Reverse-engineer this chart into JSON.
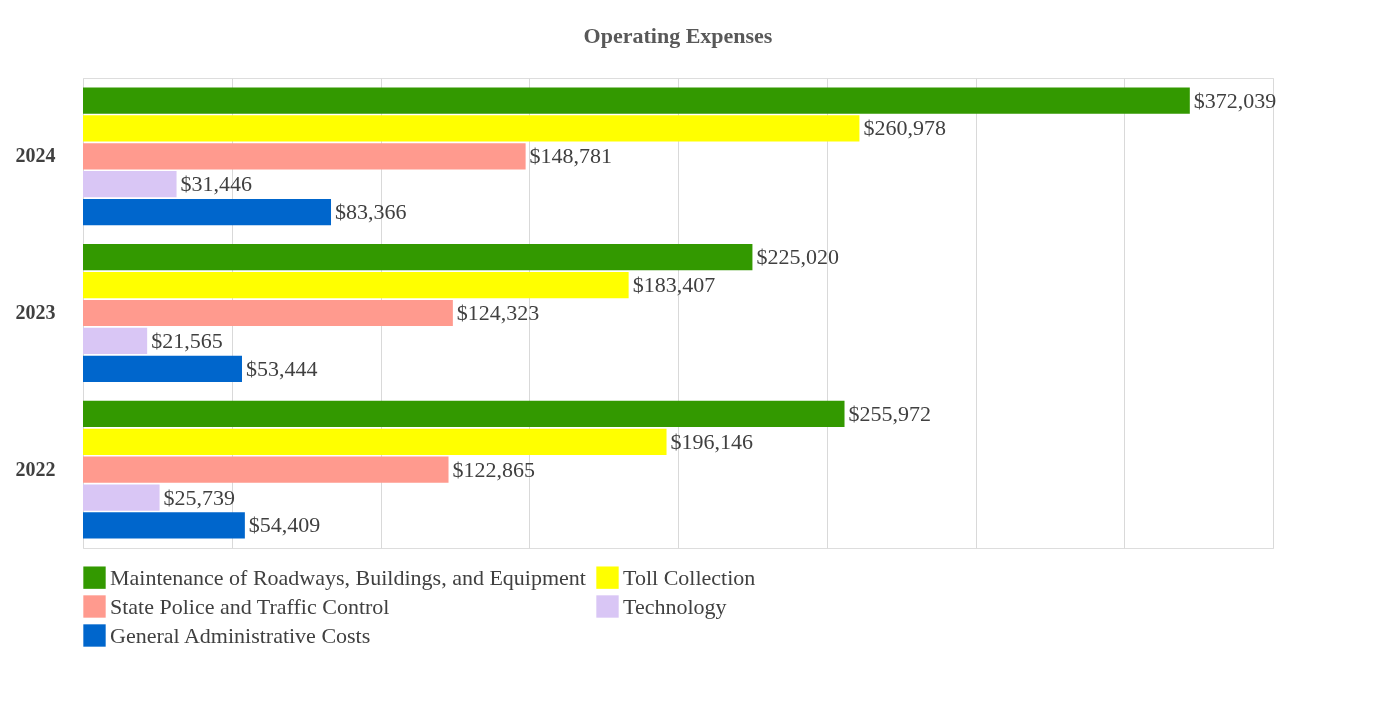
{
  "chart_data": {
    "type": "bar",
    "orientation": "horizontal",
    "title": "Operating Expenses",
    "categories": [
      "2024",
      "2023",
      "2022"
    ],
    "xlim": [
      0,
      400000
    ],
    "xticks": [
      {
        "value": 0,
        "label": null
      },
      {
        "value": 50000,
        "label": null
      },
      {
        "value": 100000,
        "label": null
      },
      {
        "value": 150000,
        "label": null
      },
      {
        "value": 200000,
        "label": null
      },
      {
        "value": 250000,
        "label": null
      },
      {
        "value": 300000,
        "label": null
      },
      {
        "value": 350000,
        "label": null
      },
      {
        "value": 400000,
        "label": null
      }
    ],
    "tick_labels": "y",
    "grid": "x",
    "legend": "bottom",
    "series": [
      {
        "name": "Maintenance of Roadways, Buildings, and Equipment",
        "color": "#339900",
        "values": [
          372039,
          225020,
          255972
        ],
        "value_labels": [
          "$372,039",
          "$225,020",
          "$255,972"
        ]
      },
      {
        "name": "Toll Collection",
        "color": "#ffff00",
        "values": [
          260978,
          183407,
          196146
        ],
        "value_labels": [
          "$260,978",
          "$183,407",
          "$196,146"
        ]
      },
      {
        "name": "State Police and Traffic Control",
        "color": "#ff9a8e",
        "values": [
          148781,
          124323,
          122865
        ],
        "value_labels": [
          "$148,781",
          "$124,323",
          "$122,865"
        ]
      },
      {
        "name": "Technology",
        "color": "#d9c6f5",
        "values": [
          31446,
          21565,
          25739
        ],
        "value_labels": [
          "$31,446",
          "$21,565",
          "$25,739"
        ]
      },
      {
        "name": "General Administrative Costs",
        "color": "#0066cc",
        "values": [
          83366,
          53444,
          54409
        ],
        "value_labels": [
          "$83,366",
          "$53,444",
          "$54,409"
        ]
      }
    ]
  }
}
